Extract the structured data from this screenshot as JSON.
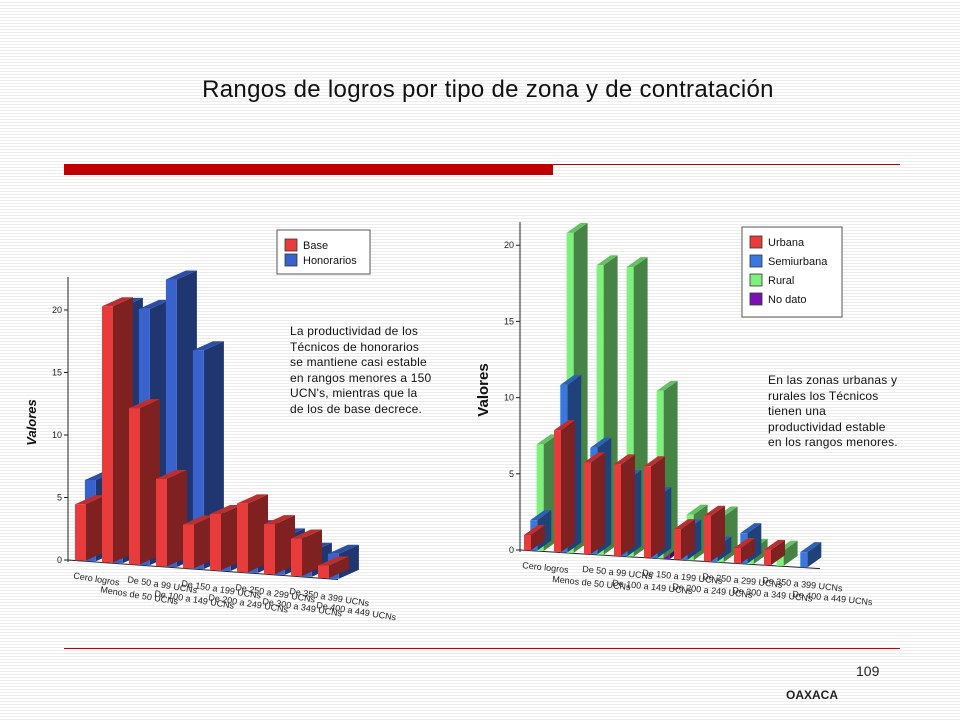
{
  "title": "Rangos de logros por tipo de zona y de contratación",
  "page_number": "109",
  "footer": "OAXACA",
  "colors": {
    "accent": "#c00000"
  },
  "notes": {
    "left": "La productividad de los Técnicos de honorarios se mantiene casi estable en rangos menores a 150 UCN's, mientras que la de los de base decrece.",
    "right": "En las zonas urbanas y rurales los Técnicos tienen una productividad estable en los rangos menores."
  },
  "chart_data": [
    {
      "type": "bar",
      "ylabel": "Valores",
      "ylim": [
        0,
        22
      ],
      "yticks": [
        0,
        5,
        10,
        15,
        20
      ],
      "categories": [
        "Cero logros",
        "Menos de 50 UCNs",
        "De 50 a 99 UCNs",
        "De 100 a 149 UCNs",
        "De 150 a 199 UCNs",
        "De 200 a 249 UCNs",
        "De 250 a 299 UCNs",
        "De 300 a 349 UCNs",
        "De 350 a 399 UCNs",
        "De 400 a 449 UCNs"
      ],
      "series": [
        {
          "name": "Base",
          "color": "#e83c3c",
          "values": [
            4.5,
            20.5,
            12.5,
            7,
            3.5,
            4.5,
            5.5,
            4,
            3,
            1
          ]
        },
        {
          "name": "Honorarios",
          "color": "#3a62cc",
          "values": [
            6.5,
            20.5,
            20.5,
            23,
            17.5,
            4,
            3.5,
            3,
            2,
            2
          ]
        }
      ],
      "legend_position": "top-right"
    },
    {
      "type": "bar",
      "ylabel": "Valores",
      "ylim": [
        0,
        21
      ],
      "yticks": [
        0,
        5,
        10,
        15,
        20
      ],
      "categories": [
        "Cero logros",
        "Menos de 50 UCNs",
        "De 50 a 99 UCNs",
        "De 100 a 149 UCNs",
        "De 150 a 199 UCNs",
        "De 200 a 249 UCNs",
        "De 250 a 299 UCNs",
        "De 300 a 349 UCNs",
        "De 350 a 399 UCNs",
        "De 400 a 449 UCNs"
      ],
      "series": [
        {
          "name": "Urbana",
          "color": "#e83c3c",
          "values": [
            1,
            8,
            6,
            6,
            6,
            2,
            3,
            1,
            1,
            0
          ]
        },
        {
          "name": "Semiurbana",
          "color": "#3a78e0",
          "values": [
            2,
            11,
            7,
            5,
            4,
            2,
            1,
            2,
            0,
            1
          ]
        },
        {
          "name": "Rural",
          "color": "#7ef07e",
          "values": [
            7,
            21,
            19,
            19,
            11,
            3,
            3,
            1,
            1,
            0
          ]
        },
        {
          "name": "No dato",
          "color": "#7a10b4",
          "values": [
            0,
            0,
            0,
            0,
            1,
            0,
            0,
            0,
            0,
            0
          ]
        }
      ],
      "legend_position": "top-right"
    }
  ]
}
